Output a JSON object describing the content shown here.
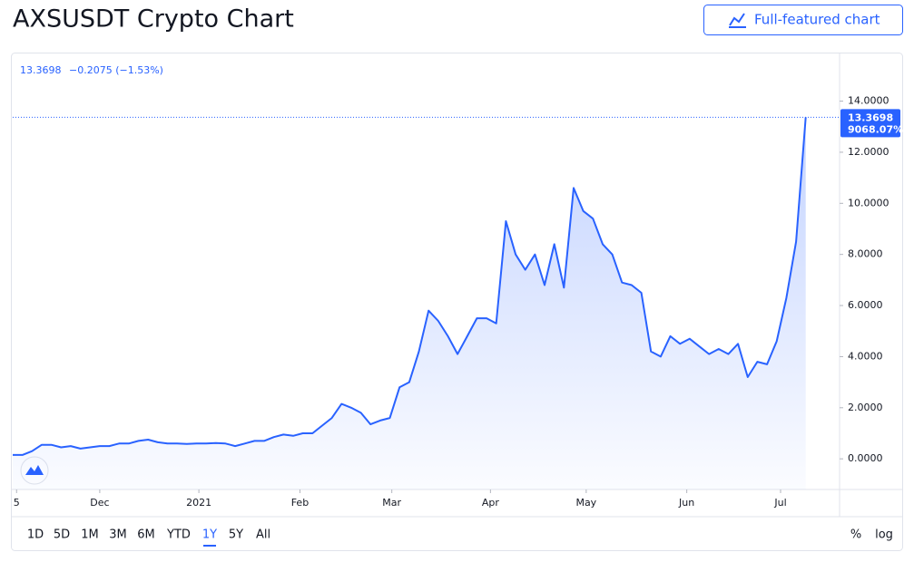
{
  "header": {
    "title": "AXSUSDT Crypto Chart",
    "button": "Full-featured chart"
  },
  "chart_data": {
    "type": "area",
    "values": [
      0.15,
      0.15,
      0.3,
      0.55,
      0.55,
      0.45,
      0.5,
      0.4,
      0.45,
      0.5,
      0.5,
      0.6,
      0.6,
      0.7,
      0.75,
      0.65,
      0.6,
      0.6,
      0.58,
      0.6,
      0.6,
      0.62,
      0.6,
      0.5,
      0.6,
      0.7,
      0.7,
      0.85,
      0.95,
      0.9,
      1.0,
      1.0,
      1.3,
      1.6,
      2.15,
      2.0,
      1.8,
      1.35,
      1.5,
      1.6,
      2.8,
      3.0,
      4.2,
      5.8,
      5.4,
      4.8,
      4.1,
      4.8,
      5.5,
      5.5,
      5.3,
      9.3,
      8.0,
      7.4,
      8.0,
      6.8,
      8.4,
      6.7,
      10.6,
      9.7,
      9.4,
      8.4,
      8.0,
      6.9,
      6.8,
      6.5,
      4.2,
      4.0,
      4.8,
      4.5,
      4.7,
      4.4,
      4.1,
      4.3,
      4.1,
      4.5,
      3.2,
      3.8,
      3.7,
      4.6,
      6.3,
      8.5,
      13.3698
    ],
    "color": "#2962ff",
    "change": "−0.2075 (−1.53%)",
    "change_percent_label": "9068.07%",
    "xlim": [
      0,
      85.5
    ],
    "xticks": [
      {
        "value": 0.4,
        "label": "5"
      },
      {
        "value": 9.0,
        "label": "Dec"
      },
      {
        "value": 19.25,
        "label": "2021"
      },
      {
        "value": 29.7,
        "label": "Feb"
      },
      {
        "value": 39.2,
        "label": "Mar"
      },
      {
        "value": 49.4,
        "label": "Apr"
      },
      {
        "value": 59.3,
        "label": "May"
      },
      {
        "value": 69.7,
        "label": "Jun"
      },
      {
        "value": 79.4,
        "label": "Jul"
      }
    ],
    "ylim": [
      -1.2,
      15.9
    ],
    "yticks": [
      {
        "value": 0,
        "label": "0.0000"
      },
      {
        "value": 2,
        "label": "2.0000"
      },
      {
        "value": 4,
        "label": "4.0000"
      },
      {
        "value": 6,
        "label": "6.0000"
      },
      {
        "value": 8,
        "label": "8.0000"
      },
      {
        "value": 10,
        "label": "10.0000"
      },
      {
        "value": 12,
        "label": "12.0000"
      },
      {
        "value": 14,
        "label": "14.0000"
      }
    ]
  },
  "toolbar": {
    "ranges": [
      "1D",
      "5D",
      "1M",
      "3M",
      "6M",
      "YTD",
      "1Y",
      "5Y",
      "All"
    ],
    "selected": "1Y",
    "percent": "%",
    "log": "log"
  }
}
